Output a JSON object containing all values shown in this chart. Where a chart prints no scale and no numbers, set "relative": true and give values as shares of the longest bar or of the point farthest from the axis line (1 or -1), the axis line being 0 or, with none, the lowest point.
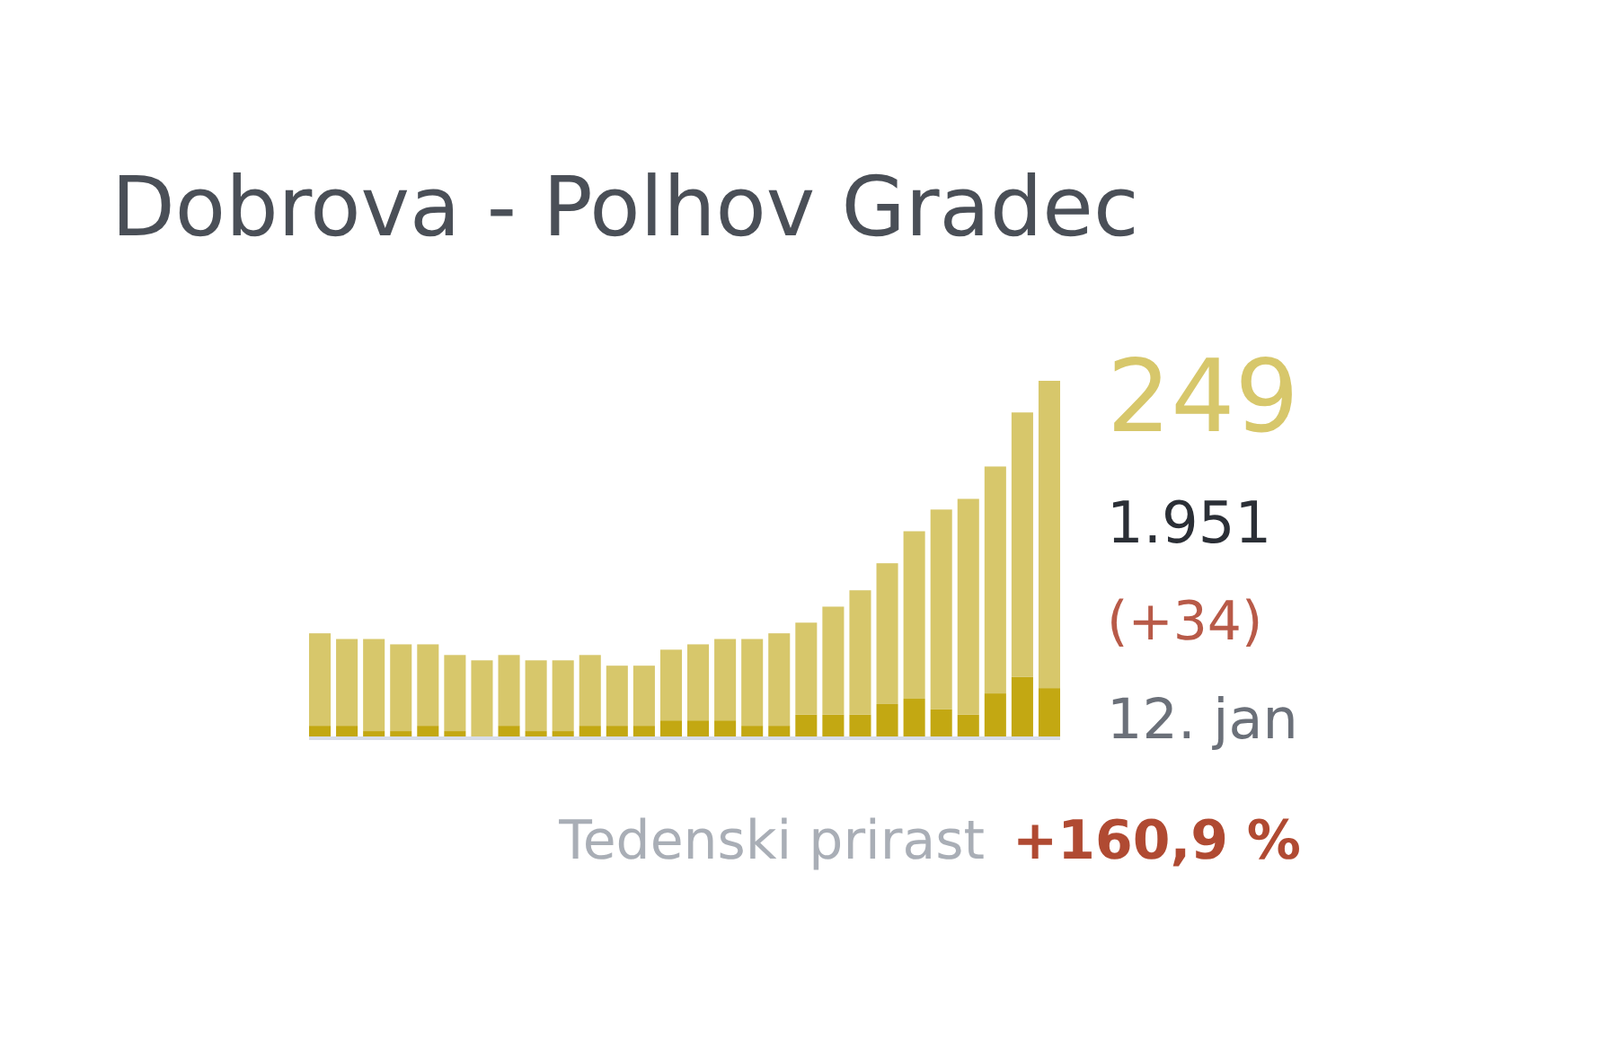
{
  "chart_data": {
    "type": "bar",
    "title": "Dobrova - Polhov Gradec",
    "categories": [
      null,
      null,
      null,
      null,
      null,
      null,
      null,
      null,
      null,
      null,
      null,
      null,
      null,
      null,
      null,
      null,
      null,
      null,
      null,
      null,
      null,
      null,
      null,
      null,
      null,
      null,
      null,
      null
    ],
    "stacked": true,
    "relative": true,
    "series": [
      {
        "color": "#c3a812",
        "values": [
          0.03,
          0.03,
          0.015,
          0.015,
          0.03,
          0.015,
          0,
          0.03,
          0.015,
          0.015,
          0.03,
          0.03,
          0.03,
          0.045,
          0.045,
          0.045,
          0.03,
          0.03,
          0.061,
          0.061,
          0.061,
          0.091,
          0.106,
          0.076,
          0.061,
          0.121,
          0.167,
          0.136
        ]
      },
      {
        "color": "#d7c76b",
        "values": [
          0.26,
          0.244,
          0.259,
          0.244,
          0.229,
          0.214,
          0.214,
          0.199,
          0.199,
          0.199,
          0.199,
          0.169,
          0.169,
          0.199,
          0.214,
          0.229,
          0.244,
          0.26,
          0.259,
          0.304,
          0.35,
          0.396,
          0.471,
          0.562,
          0.607,
          0.638,
          0.744,
          0.864
        ]
      }
    ],
    "annotations": [
      "249",
      "1.951",
      "(+34)",
      "12. jan",
      "Tedenski prirast",
      "+160,9 %"
    ]
  }
}
